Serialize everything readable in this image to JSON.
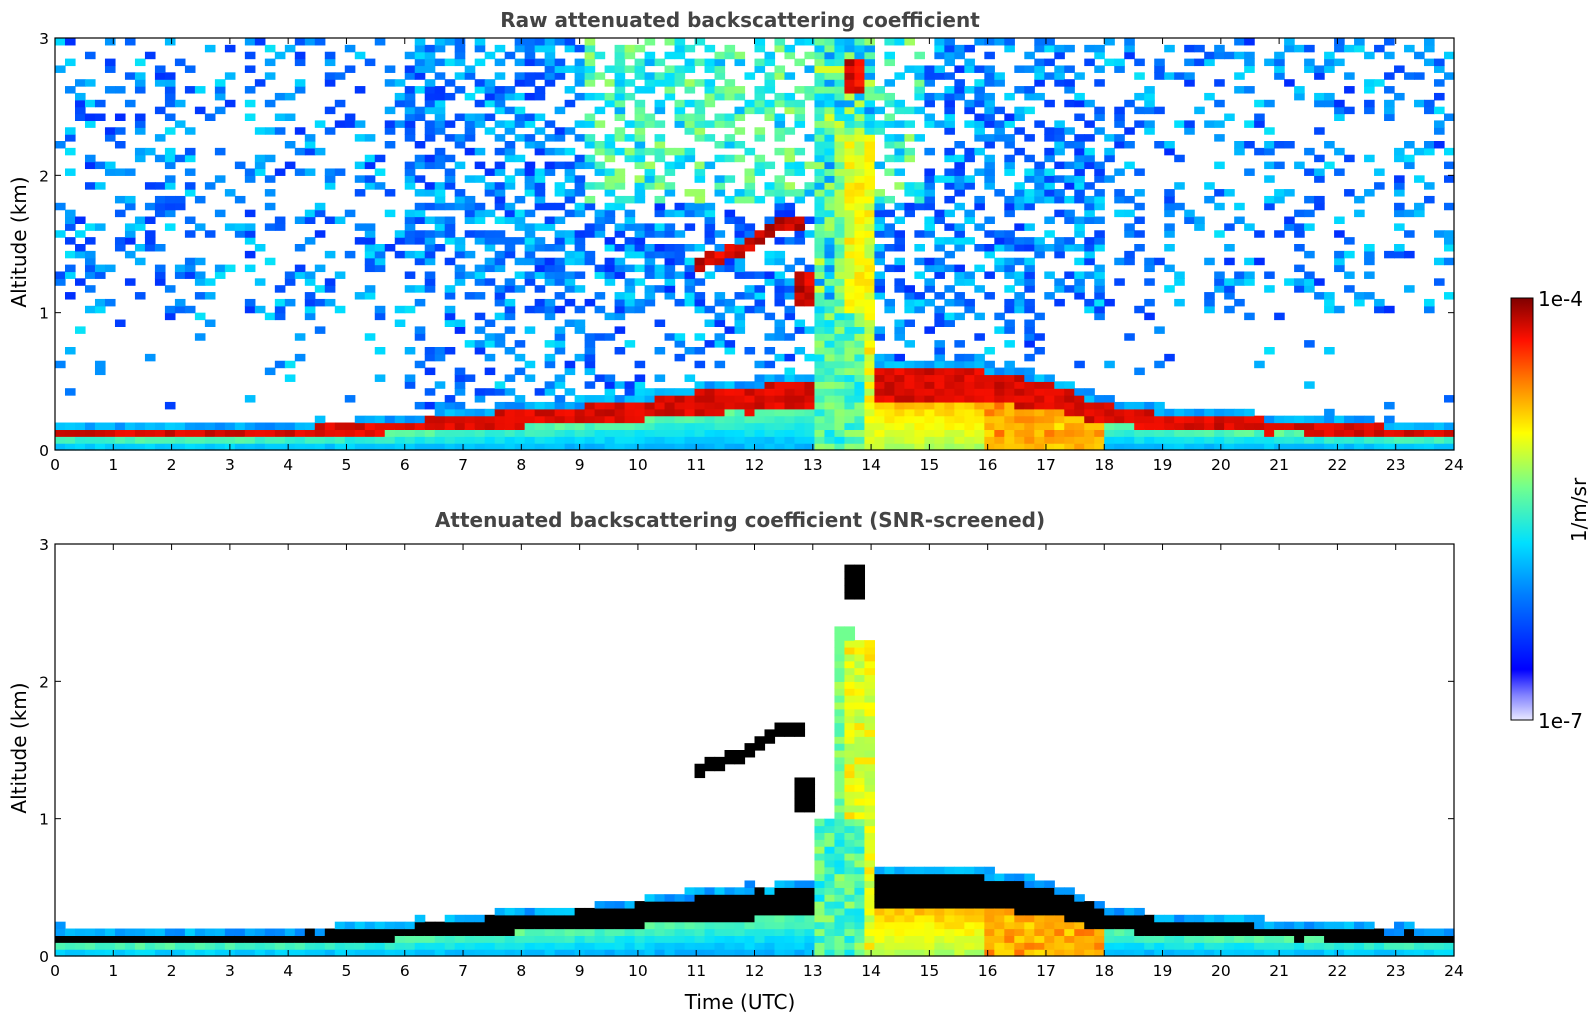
{
  "chart_data": [
    {
      "type": "heatmap",
      "title": "Raw attenuated backscattering coefficient",
      "xlabel": "",
      "ylabel": "Altitude (km)",
      "xlim": [
        0,
        24
      ],
      "ylim": [
        0,
        3
      ],
      "x_ticks": [
        "0",
        "1",
        "2",
        "3",
        "4",
        "5",
        "6",
        "7",
        "8",
        "9",
        "10",
        "11",
        "12",
        "13",
        "14",
        "15",
        "16",
        "17",
        "18",
        "19",
        "20",
        "21",
        "22",
        "23",
        "24"
      ],
      "y_ticks": [
        "0",
        "1",
        "2",
        "3"
      ],
      "screened": false,
      "features": {
        "layer_top_km": [
          {
            "t": 0,
            "h": 0.17
          },
          {
            "t": 2,
            "h": 0.14
          },
          {
            "t": 4,
            "h": 0.16
          },
          {
            "t": 5,
            "h": 0.18
          },
          {
            "t": 6,
            "h": 0.21
          },
          {
            "t": 7,
            "h": 0.25
          },
          {
            "t": 8,
            "h": 0.29
          },
          {
            "t": 9,
            "h": 0.32
          },
          {
            "t": 10,
            "h": 0.37
          },
          {
            "t": 11,
            "h": 0.43
          },
          {
            "t": 12,
            "h": 0.47
          },
          {
            "t": 12.9,
            "h": 0.5
          },
          {
            "t": 14,
            "h": 0.62
          },
          {
            "t": 15,
            "h": 0.61
          },
          {
            "t": 16,
            "h": 0.58
          },
          {
            "t": 17,
            "h": 0.5
          },
          {
            "t": 17.5,
            "h": 0.42
          },
          {
            "t": 18,
            "h": 0.33
          },
          {
            "t": 19,
            "h": 0.26
          },
          {
            "t": 20,
            "h": 0.24
          },
          {
            "t": 21,
            "h": 0.21
          },
          {
            "t": 22,
            "h": 0.2
          },
          {
            "t": 23,
            "h": 0.17
          },
          {
            "t": 24,
            "h": 0.15
          }
        ],
        "elevated_layer_km": [
          {
            "t": 11,
            "h": 1.35
          },
          {
            "t": 11.5,
            "h": 1.43
          },
          {
            "t": 12,
            "h": 1.52
          },
          {
            "t": 12.5,
            "h": 1.7
          },
          {
            "t": 12.9,
            "h": 1.6
          }
        ],
        "cloud_column": {
          "t_start": 13.1,
          "t_end": 14.0,
          "top_km": 3.0
        }
      }
    },
    {
      "type": "heatmap",
      "title": "Attenuated backscattering coefficient (SNR-screened)",
      "xlabel": "Time (UTC)",
      "ylabel": "Altitude (km)",
      "xlim": [
        0,
        24
      ],
      "ylim": [
        0,
        3
      ],
      "x_ticks": [
        "0",
        "1",
        "2",
        "3",
        "4",
        "5",
        "6",
        "7",
        "8",
        "9",
        "10",
        "11",
        "12",
        "13",
        "14",
        "15",
        "16",
        "17",
        "18",
        "19",
        "20",
        "21",
        "22",
        "23",
        "24"
      ],
      "y_ticks": [
        "0",
        "1",
        "2",
        "3"
      ],
      "screened": true,
      "saturation_color": "#000000"
    }
  ],
  "colorbar": {
    "label": "1/m/sr",
    "min_label": "1e-7",
    "max_label": "1e-4",
    "scale": "log",
    "colormap": "jet"
  }
}
